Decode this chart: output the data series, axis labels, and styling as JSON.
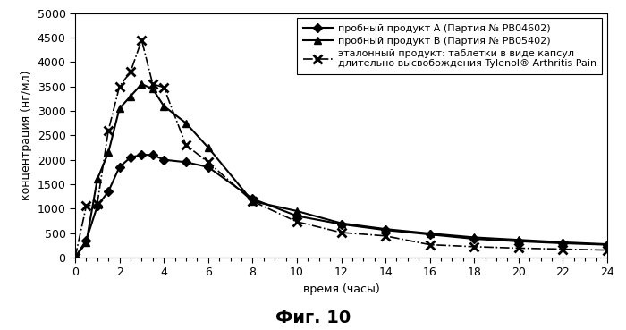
{
  "series_A": {
    "label": "пробный продукт А (Партия № РВ04602)",
    "x": [
      0,
      0.5,
      1,
      1.5,
      2,
      2.5,
      3,
      3.5,
      4,
      5,
      6,
      8,
      10,
      12,
      14,
      16,
      18,
      20,
      22,
      24
    ],
    "y": [
      0,
      350,
      1050,
      1350,
      1850,
      2050,
      2100,
      2100,
      2000,
      1950,
      1850,
      1200,
      850,
      680,
      560,
      470,
      380,
      330,
      290,
      260
    ],
    "color": "#000000",
    "marker": "D",
    "linestyle": "-",
    "linewidth": 1.5,
    "markersize": 5
  },
  "series_B": {
    "label": "пробный продукт В (Партия № РВ05402)",
    "x": [
      0,
      0.5,
      1,
      1.5,
      2,
      2.5,
      3,
      3.5,
      4,
      5,
      6,
      8,
      10,
      12,
      14,
      16,
      18,
      20,
      22,
      24
    ],
    "y": [
      0,
      300,
      1600,
      2150,
      3050,
      3300,
      3550,
      3450,
      3100,
      2750,
      2250,
      1150,
      950,
      700,
      580,
      490,
      410,
      360,
      310,
      270
    ],
    "color": "#000000",
    "marker": "^",
    "linestyle": "-",
    "linewidth": 1.5,
    "markersize": 6
  },
  "series_ref": {
    "label": "эталонный продукт: таблетки в виде капсул\nдлительно высвобождения Tylenol® Arthritis Pain",
    "x": [
      0,
      0.5,
      1,
      1.5,
      2,
      2.5,
      3,
      3.5,
      4,
      5,
      6,
      8,
      10,
      12,
      14,
      16,
      18,
      20,
      22,
      24
    ],
    "y": [
      0,
      1050,
      1100,
      2600,
      3500,
      3800,
      4450,
      3550,
      3480,
      2300,
      1950,
      1150,
      730,
      510,
      440,
      260,
      220,
      190,
      170,
      150
    ],
    "color": "#000000",
    "marker": "x",
    "linestyle": "-.",
    "linewidth": 1.2,
    "markersize": 7
  },
  "xlabel": "время (часы)",
  "ylabel": "концентрация (нг/мл)",
  "xlim": [
    0,
    24
  ],
  "ylim": [
    0,
    5000
  ],
  "xticks": [
    0,
    2,
    4,
    6,
    8,
    10,
    12,
    14,
    16,
    18,
    20,
    22,
    24
  ],
  "yticks": [
    0,
    500,
    1000,
    1500,
    2000,
    2500,
    3000,
    3500,
    4000,
    4500,
    5000
  ],
  "caption": "Фиг. 10",
  "background_color": "#ffffff",
  "fig_width": 7.0,
  "fig_height": 3.69,
  "dpi": 100
}
